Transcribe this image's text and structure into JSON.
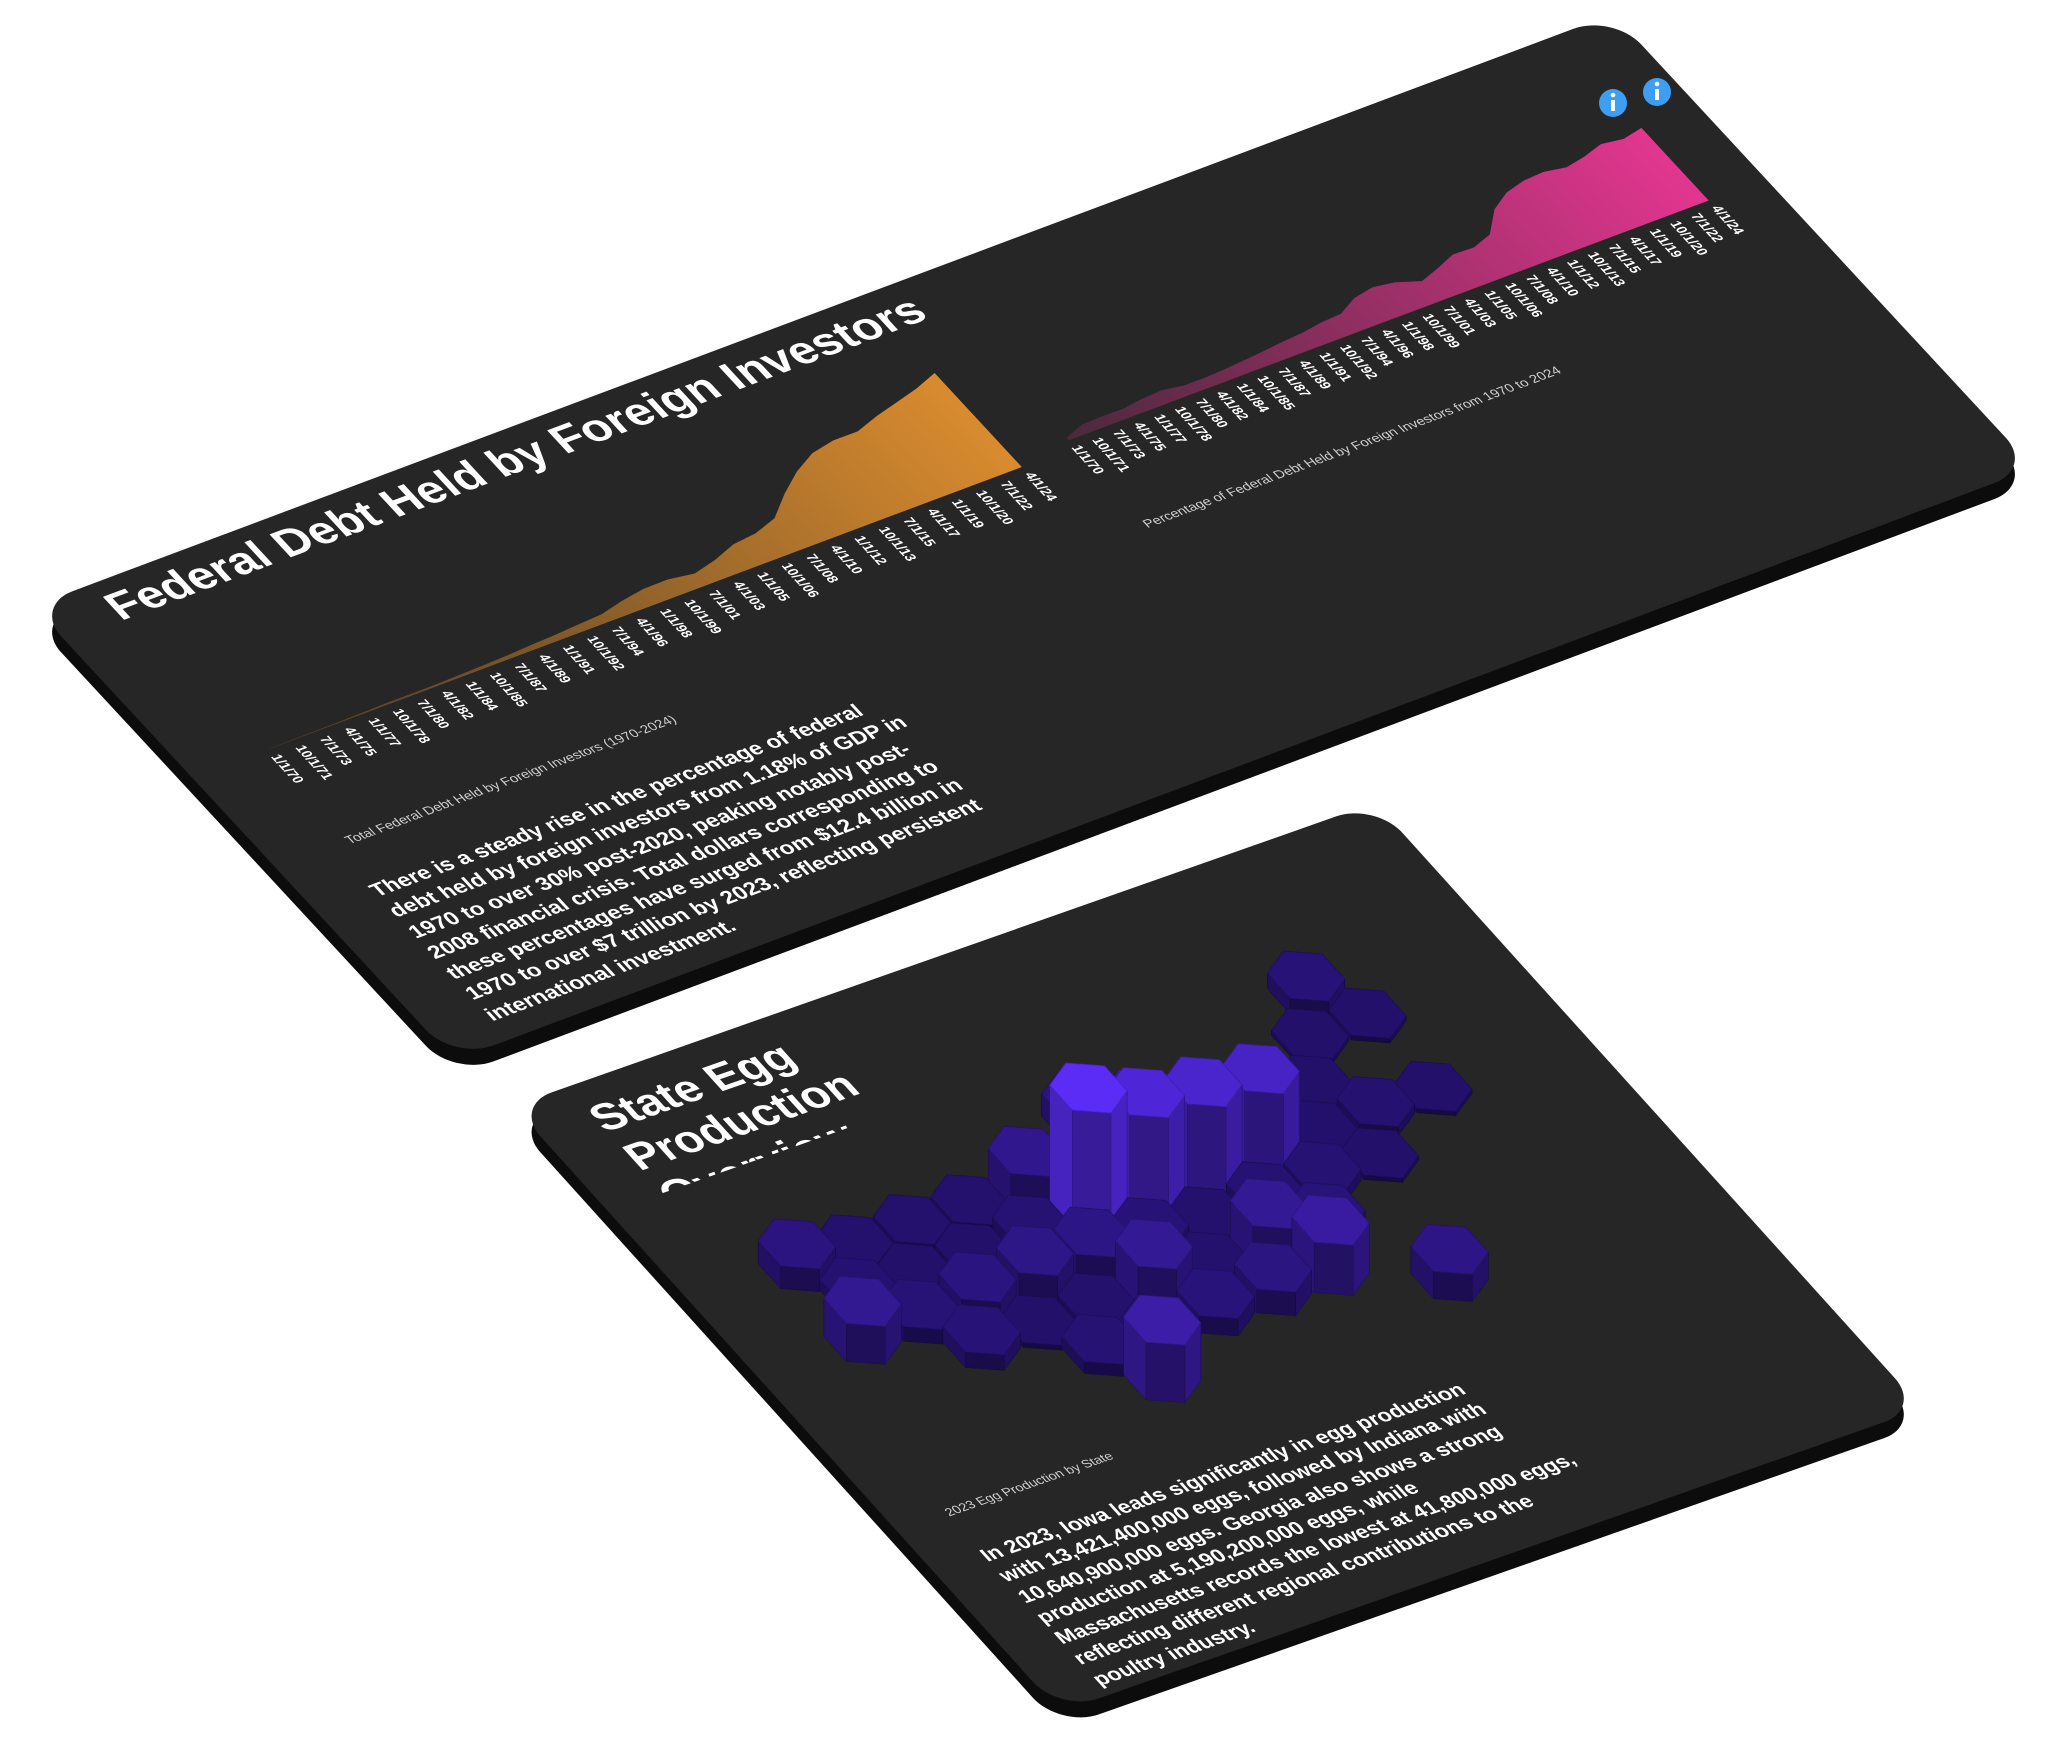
{
  "cards": [
    {
      "title": "Federal Debt Held by Foreign Investors",
      "description": "There is a steady rise in the percentage of federal debt held by foreign investors from 1.18% of GDP in 1970 to over 30% post-2020, peaking notably post-2008 financial crisis. Total dollars corresponding to these percentages have surged from $12.4 billion in 1970 to over $7 trillion by 2023, reflecting persistent international investment."
    },
    {
      "title": "State Egg Production Overview",
      "description": "In 2023, Iowa leads significantly in egg production with 13,421,400,000 eggs, followed by Indiana with 10,640,900,000 eggs. Georgia also shows a strong production at 5,190,200,000 eggs, while Massachusetts records the lowest at 41,800,000 eggs, reflecting different regional contributions to the poultry industry."
    }
  ],
  "chart_data": [
    {
      "type": "area",
      "title": "Total Federal Debt Held by Foreign Investors (1970-2024)",
      "categories": [
        "1/1/70",
        "10/1/71",
        "7/1/73",
        "4/1/75",
        "1/1/77",
        "10/1/78",
        "7/1/80",
        "4/1/82",
        "1/1/84",
        "10/1/85",
        "7/1/87",
        "4/1/89",
        "1/1/91",
        "10/1/92",
        "7/1/94",
        "4/1/96",
        "1/1/98",
        "10/1/99",
        "7/1/01",
        "4/1/03",
        "1/1/05",
        "10/1/06",
        "7/1/08",
        "4/1/10",
        "1/1/12",
        "10/1/13",
        "7/1/15",
        "4/1/17",
        "1/1/19",
        "10/1/20",
        "7/1/22",
        "4/1/24"
      ],
      "values": [
        12.4,
        46,
        55,
        66,
        101,
        130,
        121,
        140,
        175,
        220,
        280,
        370,
        440,
        550,
        640,
        1000,
        1250,
        1270,
        1010,
        1380,
        1930,
        2100,
        2600,
        3900,
        5000,
        5800,
        6100,
        6100,
        6600,
        7000,
        7400,
        7950
      ],
      "color": "#d98b2e",
      "ylim": [
        0,
        8000
      ]
    },
    {
      "type": "area",
      "title": "Percentage of Federal Debt Held by Foreign Investors from 1970 to 2024",
      "categories": [
        "1/1/70",
        "10/1/71",
        "7/1/73",
        "4/1/75",
        "1/1/77",
        "10/1/78",
        "7/1/80",
        "4/1/82",
        "1/1/84",
        "10/1/85",
        "7/1/87",
        "4/1/89",
        "1/1/91",
        "10/1/92",
        "7/1/94",
        "4/1/96",
        "1/1/98",
        "10/1/99",
        "7/1/01",
        "4/1/03",
        "1/1/05",
        "10/1/06",
        "7/1/08",
        "4/1/10",
        "1/1/12",
        "10/1/13",
        "7/1/15",
        "4/1/17",
        "1/1/19",
        "10/1/20",
        "7/1/22",
        "4/1/24"
      ],
      "values": [
        1.18,
        4.0,
        4.2,
        4.1,
        5.2,
        5.6,
        4.3,
        4.3,
        4.7,
        5.3,
        6.0,
        6.8,
        7.4,
        8.6,
        9.1,
        13.0,
        14.5,
        13.2,
        9.9,
        12.5,
        15.5,
        15.2,
        17.8,
        26.4,
        31.0,
        33.0,
        33.5,
        32.0,
        33.5,
        35.8,
        34.6,
        36.2
      ],
      "color": "#e2368f",
      "ylim": [
        0,
        37
      ]
    },
    {
      "type": "hexmap",
      "title": "2023 Egg Production by State",
      "values": [
        1300,
        2000,
        60,
        90,
        2100,
        300,
        300,
        260,
        3400,
        1500,
        5200,
        1800,
        41.8,
        700,
        55,
        50,
        900,
        13421.4,
        10640.9,
        9600,
        8800,
        200,
        600,
        45,
        3800,
        1200,
        2000,
        2700,
        2500,
        1300,
        250,
        800,
        800,
        50,
        1300,
        100,
        300,
        4100,
        400,
        4100,
        1400,
        900,
        500,
        1500,
        2200,
        5190.2,
        6000,
        2600
      ],
      "colors": [
        "#22106a",
        "#5a2cf5"
      ]
    }
  ]
}
